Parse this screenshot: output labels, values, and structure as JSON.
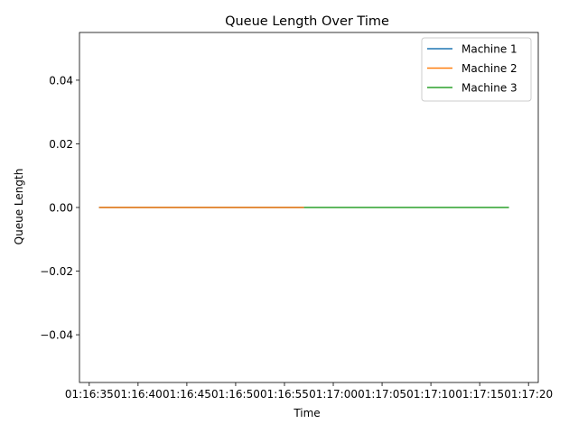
{
  "chart_data": {
    "type": "line",
    "title": "Queue Length Over Time",
    "xlabel": "Time",
    "ylabel": "Queue Length",
    "xlim": [
      "01:16:34",
      "01:17:21"
    ],
    "ylim": [
      -0.055,
      0.055
    ],
    "x_ticks": [
      "01:16:35",
      "01:16:40",
      "01:16:45",
      "01:16:50",
      "01:16:55",
      "01:17:00",
      "01:17:05",
      "01:17:10",
      "01:17:15",
      "01:17:20"
    ],
    "y_ticks": [
      -0.04,
      -0.02,
      0.0,
      0.02,
      0.04
    ],
    "y_tick_labels": [
      "−0.04",
      "−0.02",
      "0.00",
      "0.02",
      "0.04"
    ],
    "grid": false,
    "legend_position": "top-right",
    "series": [
      {
        "name": "Machine 1",
        "color": "#1f77b4",
        "x": [
          "01:16:36",
          "01:16:57"
        ],
        "y": [
          0,
          0
        ]
      },
      {
        "name": "Machine 2",
        "color": "#ff7f0e",
        "x": [
          "01:16:36",
          "01:16:57"
        ],
        "y": [
          0,
          0
        ]
      },
      {
        "name": "Machine 3",
        "color": "#2ca02c",
        "x": [
          "01:16:57",
          "01:17:18"
        ],
        "y": [
          0,
          0
        ]
      }
    ]
  }
}
